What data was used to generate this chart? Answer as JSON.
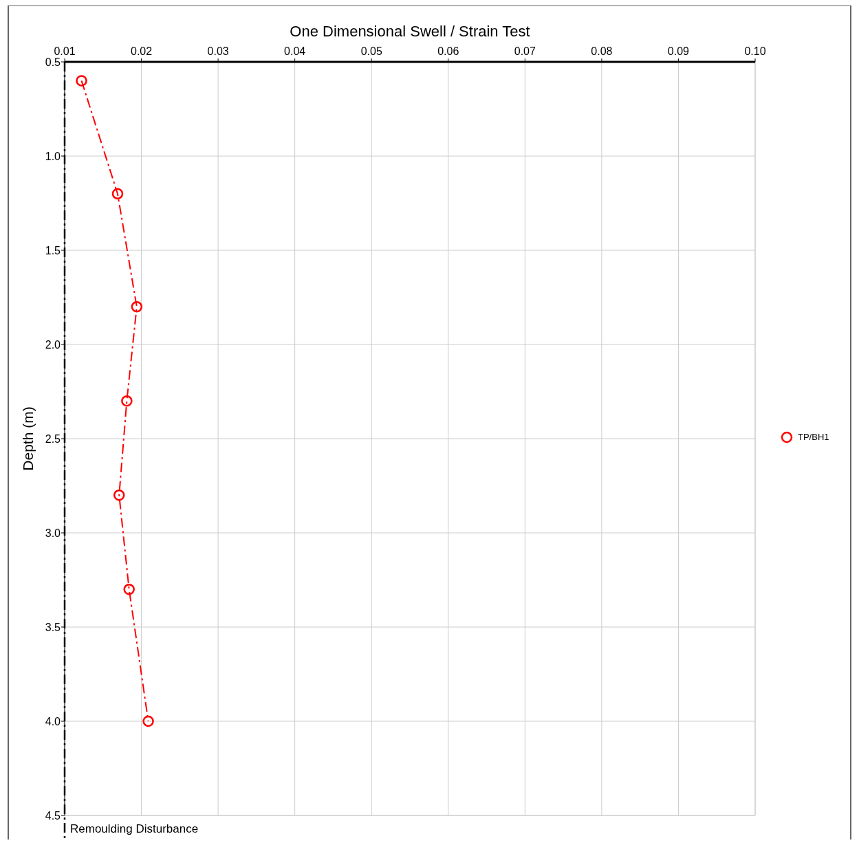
{
  "chart_data": {
    "type": "line",
    "title": "One Dimensional Swell / Strain Test",
    "ylabel": "Depth (m)",
    "x": [
      0.0122,
      0.0169,
      0.0194,
      0.0181,
      0.0171,
      0.0184,
      0.0209
    ],
    "series": [
      {
        "name": "TP/BH1",
        "color": "#ff0000",
        "values": [
          0.6,
          1.2,
          1.8,
          2.3,
          2.8,
          3.3,
          4.0
        ]
      }
    ],
    "xlim": [
      0.01,
      0.1
    ],
    "xticks": [
      {
        "value": 0.01,
        "label": "0.01"
      },
      {
        "value": 0.02,
        "label": "0.02"
      },
      {
        "value": 0.03,
        "label": "0.03"
      },
      {
        "value": 0.04,
        "label": "0.04"
      },
      {
        "value": 0.05,
        "label": "0.05"
      },
      {
        "value": 0.06,
        "label": "0.06"
      },
      {
        "value": 0.07,
        "label": "0.07"
      },
      {
        "value": 0.08,
        "label": "0.08"
      },
      {
        "value": 0.09,
        "label": "0.09"
      },
      {
        "value": 0.1,
        "label": "0.10"
      }
    ],
    "ylim": [
      4.5,
      0.5
    ],
    "yticks": [
      {
        "value": 0.5,
        "label": "0.5"
      },
      {
        "value": 1,
        "label": "1.0"
      },
      {
        "value": 1.5,
        "label": "1.5"
      },
      {
        "value": 2,
        "label": "2.0"
      },
      {
        "value": 2.5,
        "label": "2.5"
      },
      {
        "value": 3,
        "label": "3.0"
      },
      {
        "value": 3.5,
        "label": "3.5"
      },
      {
        "value": 4,
        "label": "4.0"
      },
      {
        "value": 4.5,
        "label": "4.5"
      }
    ],
    "ref_lines": [
      {
        "axis": "x",
        "value": 0.01,
        "label": "Remoulding Disturbance",
        "color": "#000000",
        "line_style": "dashed"
      }
    ],
    "grid": true,
    "legend": "right",
    "marker": "circle",
    "line_style": "dashed"
  }
}
